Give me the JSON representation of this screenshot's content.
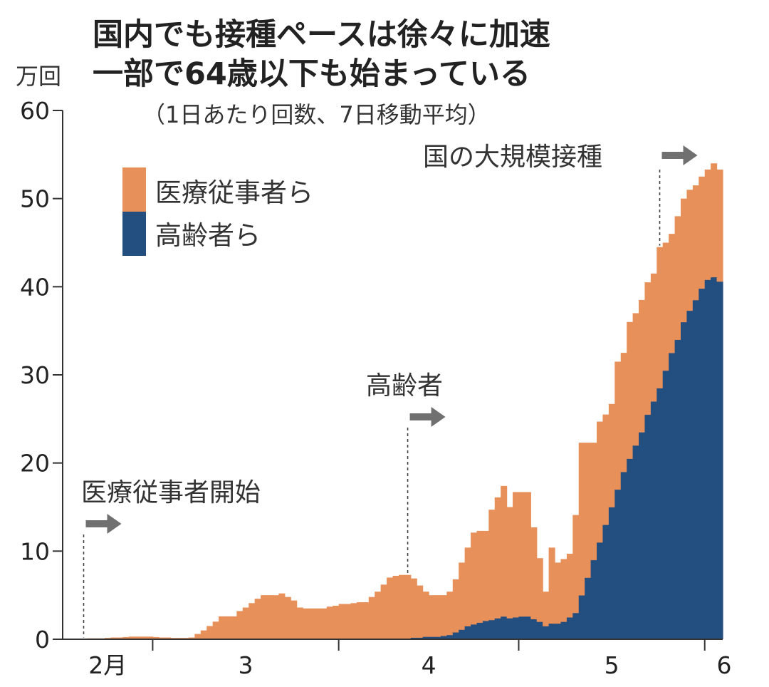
{
  "title_lines": [
    "国内でも接種ペースは徐々に加速",
    "一部で64歳以下も始まっている"
  ],
  "subtitle": "（1日あたり回数、7日移動平均）",
  "colors": {
    "medical": "#E8905A",
    "elderly": "#234E80",
    "arrow": "#707070"
  },
  "chart_data": {
    "type": "area",
    "stacked": true,
    "ylabel": "万回",
    "ylim": [
      0,
      60
    ],
    "yticks": [
      "0",
      "10",
      "20",
      "30",
      "40",
      "50",
      "60"
    ],
    "xtick_labels": [
      "2月",
      "3",
      "4",
      "5",
      "6"
    ],
    "legend": [
      "医療従事者ら",
      "高齢者ら"
    ],
    "legend_placement": "top-left",
    "grid": false,
    "x": [
      "2/14",
      "2/15",
      "2/16",
      "2/17",
      "2/18",
      "2/19",
      "2/20",
      "2/21",
      "2/22",
      "2/23",
      "2/24",
      "2/25",
      "2/26",
      "2/27",
      "2/28",
      "3/1",
      "3/2",
      "3/3",
      "3/4",
      "3/5",
      "3/6",
      "3/7",
      "3/8",
      "3/9",
      "3/10",
      "3/11",
      "3/12",
      "3/13",
      "3/14",
      "3/15",
      "3/16",
      "3/17",
      "3/18",
      "3/19",
      "3/20",
      "3/21",
      "3/22",
      "3/23",
      "3/24",
      "3/25",
      "3/26",
      "3/27",
      "3/28",
      "3/29",
      "3/30",
      "3/31",
      "4/1",
      "4/2",
      "4/3",
      "4/4",
      "4/5",
      "4/6",
      "4/7",
      "4/8",
      "4/9",
      "4/10",
      "4/11",
      "4/12",
      "4/13",
      "4/14",
      "4/15",
      "4/16",
      "4/17",
      "4/18",
      "4/19",
      "4/20",
      "4/21",
      "4/22",
      "4/23",
      "4/24",
      "4/25",
      "4/26",
      "4/27",
      "4/28",
      "4/29",
      "4/30",
      "5/1",
      "5/2",
      "5/3",
      "5/4",
      "5/5",
      "5/6",
      "5/7",
      "5/8",
      "5/9",
      "5/10",
      "5/11",
      "5/12",
      "5/13",
      "5/14",
      "5/15",
      "5/16",
      "5/17",
      "5/18",
      "5/19",
      "5/20",
      "5/21",
      "5/22",
      "5/23",
      "5/24",
      "5/25",
      "5/26",
      "5/27",
      "5/28",
      "5/29",
      "5/30",
      "5/31",
      "6/1",
      "6/2",
      "6/3"
    ],
    "series": [
      {
        "name": "高齢者ら",
        "color": "#234E80",
        "values": [
          0,
          0,
          0,
          0,
          0,
          0,
          0,
          0,
          0,
          0,
          0,
          0,
          0,
          0,
          0,
          0,
          0,
          0,
          0,
          0,
          0,
          0,
          0,
          0,
          0,
          0,
          0,
          0,
          0,
          0,
          0,
          0,
          0,
          0,
          0,
          0,
          0,
          0,
          0,
          0,
          0,
          0,
          0,
          0,
          0,
          0,
          0,
          0,
          0,
          0,
          0,
          0,
          0,
          0,
          0,
          0,
          0,
          0.1,
          0.2,
          0.2,
          0.3,
          0.3,
          0.3,
          0.4,
          0.5,
          0.8,
          1.1,
          1.5,
          1.7,
          1.9,
          2.1,
          2.2,
          2.4,
          2.6,
          2.4,
          2.5,
          2.6,
          2.6,
          2.3,
          2.0,
          1.5,
          1.8,
          1.8,
          2.0,
          2.5,
          3,
          5,
          7,
          9,
          11,
          13,
          15,
          17,
          19,
          20.5,
          22,
          23.5,
          25.5,
          27,
          28.5,
          30.5,
          32.5,
          34,
          36,
          37.3,
          38.5,
          39.8,
          40.8,
          41.1,
          40.6
        ]
      },
      {
        "name": "医療従事者ら",
        "color": "#E8905A",
        "values": [
          0,
          0,
          0,
          0.05,
          0.1,
          0.1,
          0.1,
          0.15,
          0.2,
          0.2,
          0.25,
          0.3,
          0.3,
          0.3,
          0.3,
          0.25,
          0.2,
          0.2,
          0.15,
          0.15,
          0.15,
          0.2,
          0.6,
          1.0,
          1.5,
          2.0,
          2.6,
          2.6,
          2.6,
          3.2,
          3.6,
          4.1,
          4.6,
          5.0,
          5.0,
          5.0,
          5.2,
          4.8,
          4.4,
          3.6,
          3.5,
          3.5,
          3.5,
          3.5,
          3.7,
          3.8,
          4.0,
          4.0,
          4.1,
          4.2,
          4.2,
          4.8,
          5.4,
          6.2,
          7.0,
          7.2,
          7.3,
          7.2,
          6.7,
          5.9,
          5.1,
          4.7,
          4.7,
          4.6,
          4.9,
          6.0,
          7.6,
          8.9,
          10.4,
          10.4,
          10.2,
          12.5,
          13.7,
          14.8,
          12.6,
          14.2,
          14.1,
          14.1,
          10.4,
          7.2,
          3.9,
          8.6,
          6.9,
          7.1,
          7.2,
          11.1,
          17.3,
          15.3,
          13.3,
          13.7,
          12.5,
          11.7,
          14.5,
          13.5,
          15.5,
          15,
          15,
          15,
          14.5,
          16,
          14.5,
          13.5,
          14,
          14,
          13.7,
          13,
          12.7,
          12.5,
          12.9,
          12.7
        ]
      }
    ],
    "annotations": [
      {
        "date": "2/17",
        "label": "医療従事者開始"
      },
      {
        "date": "4/12",
        "label": "高齢者"
      },
      {
        "date": "5/24",
        "label": "国の大規模接種"
      }
    ]
  }
}
